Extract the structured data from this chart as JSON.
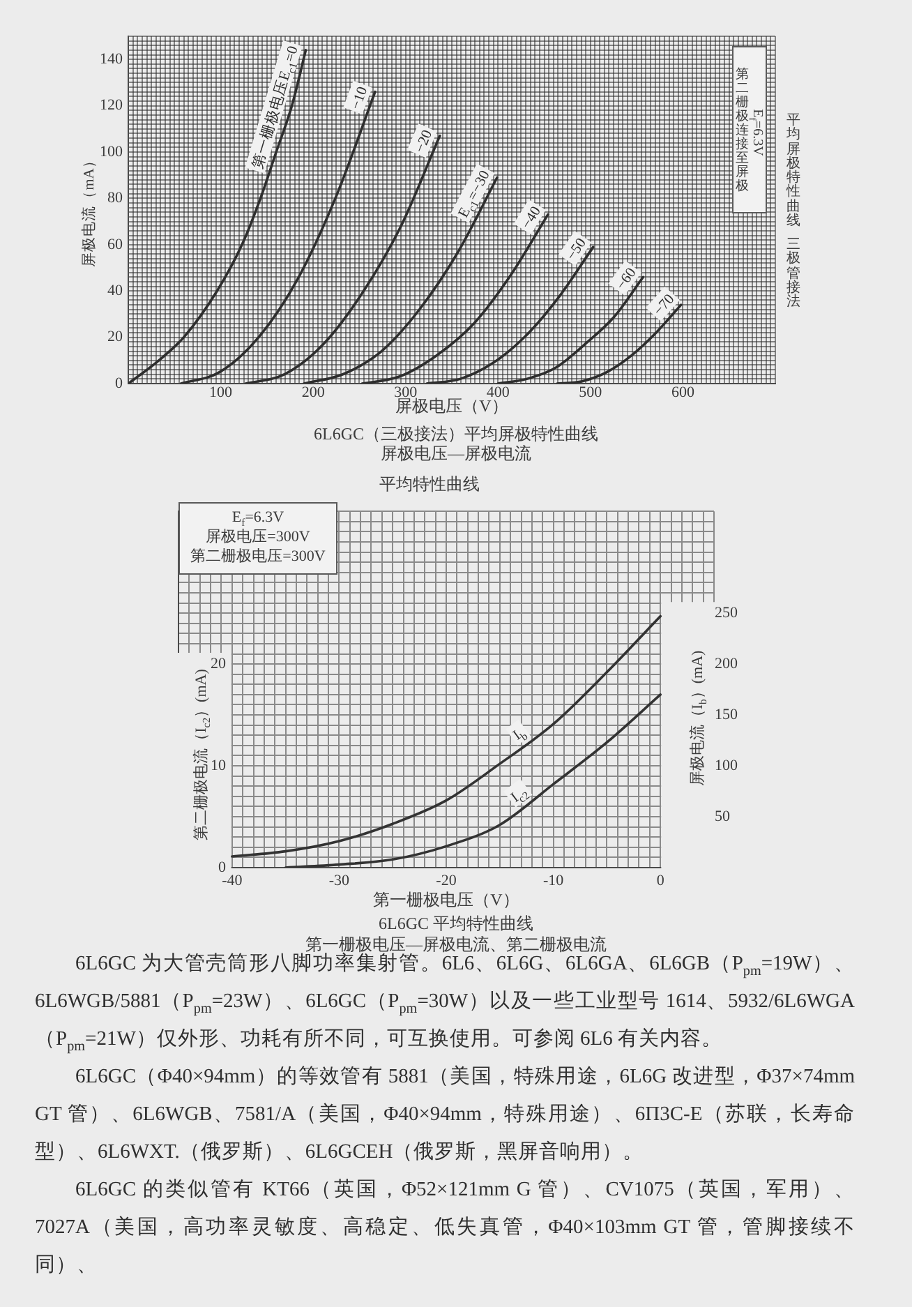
{
  "chart_data": [
    {
      "type": "line",
      "xlabel": "屏极电压（V）",
      "ylabel": "屏极电流（mA）",
      "annotations": [
        "E$_{f}$=6.3V",
        "第二栅极连接至屏极",
        "6L6GC（三极接法）平均屏极特性曲线",
        "屏极电压—屏极电流",
        "平均屏极特性曲线",
        "三极管接法"
      ],
      "series": [
        {
          "name": "第一栅极电压E$_{c1}$=0",
          "color": "#2e2e2e",
          "x": [
            0,
            33,
            60,
            96,
            123,
            143,
            160,
            177,
            192
          ],
          "values": [
            0,
            10,
            20,
            40,
            60,
            80,
            100,
            120,
            144
          ]
        },
        {
          "name": "−10",
          "color": "#2e2e2e",
          "x": [
            57,
            99,
            141,
            183,
            225,
            267
          ],
          "values": [
            0,
            5,
            20,
            45,
            81,
            126
          ]
        },
        {
          "name": "−20",
          "color": "#2e2e2e",
          "x": [
            127,
            169,
            211,
            253,
            295,
            337
          ],
          "values": [
            0,
            4,
            17,
            39,
            68,
            107
          ]
        },
        {
          "name": "E$_{c1}$=−30",
          "color": "#2e2e2e",
          "x": [
            190,
            232,
            274,
            315,
            357,
            399
          ],
          "values": [
            0,
            4,
            14,
            32,
            57,
            89
          ]
        },
        {
          "name": "−40",
          "color": "#2e2e2e",
          "x": [
            253,
            293,
            333,
            374,
            414,
            454
          ],
          "values": [
            0,
            3,
            12,
            26,
            47,
            73
          ]
        },
        {
          "name": "−50",
          "color": "#2e2e2e",
          "x": [
            323,
            359,
            395,
            431,
            467,
            503
          ],
          "values": [
            0,
            2,
            9,
            21,
            38,
            59
          ]
        },
        {
          "name": "−60",
          "color": "#2e2e2e",
          "x": [
            400,
            431,
            463,
            494,
            526,
            557
          ],
          "values": [
            0,
            2,
            7,
            17,
            29,
            46
          ]
        },
        {
          "name": "−70",
          "color": "#2e2e2e",
          "x": [
            464,
            491,
            518,
            544,
            571,
            598
          ],
          "values": [
            0,
            1,
            5,
            12,
            22,
            34
          ]
        }
      ],
      "xlim": [
        0,
        700
      ],
      "ylim": [
        0,
        150
      ],
      "xticks": [
        {
          "value": 0,
          "label": null
        },
        {
          "value": 5,
          "label": null
        },
        {
          "value": 10,
          "label": null
        },
        {
          "value": 15,
          "label": null
        },
        {
          "value": 20,
          "label": null
        },
        {
          "value": 25,
          "label": null
        },
        {
          "value": 30,
          "label": null
        },
        {
          "value": 35,
          "label": null
        },
        {
          "value": 40,
          "label": null
        },
        {
          "value": 45,
          "label": null
        },
        {
          "value": 50,
          "label": null
        },
        {
          "value": 55,
          "label": null
        },
        {
          "value": 60,
          "label": null
        },
        {
          "value": 65,
          "label": null
        },
        {
          "value": 70,
          "label": null
        },
        {
          "value": 75,
          "label": null
        },
        {
          "value": 80,
          "label": null
        },
        {
          "value": 85,
          "label": null
        },
        {
          "value": 90,
          "label": null
        },
        {
          "value": 95,
          "label": null
        },
        100,
        {
          "value": 105,
          "label": null
        },
        {
          "value": 110,
          "label": null
        },
        {
          "value": 115,
          "label": null
        },
        {
          "value": 120,
          "label": null
        },
        {
          "value": 125,
          "label": null
        },
        {
          "value": 130,
          "label": null
        },
        {
          "value": 135,
          "label": null
        },
        {
          "value": 140,
          "label": null
        },
        {
          "value": 145,
          "label": null
        },
        {
          "value": 150,
          "label": null
        },
        {
          "value": 155,
          "label": null
        },
        {
          "value": 160,
          "label": null
        },
        {
          "value": 165,
          "label": null
        },
        {
          "value": 170,
          "label": null
        },
        {
          "value": 175,
          "label": null
        },
        {
          "value": 180,
          "label": null
        },
        {
          "value": 185,
          "label": null
        },
        {
          "value": 190,
          "label": null
        },
        {
          "value": 195,
          "label": null
        },
        200,
        {
          "value": 205,
          "label": null
        },
        {
          "value": 210,
          "label": null
        },
        {
          "value": 215,
          "label": null
        },
        {
          "value": 220,
          "label": null
        },
        {
          "value": 225,
          "label": null
        },
        {
          "value": 230,
          "label": null
        },
        {
          "value": 235,
          "label": null
        },
        {
          "value": 240,
          "label": null
        },
        {
          "value": 245,
          "label": null
        },
        {
          "value": 250,
          "label": null
        },
        {
          "value": 255,
          "label": null
        },
        {
          "value": 260,
          "label": null
        },
        {
          "value": 265,
          "label": null
        },
        {
          "value": 270,
          "label": null
        },
        {
          "value": 275,
          "label": null
        },
        {
          "value": 280,
          "label": null
        },
        {
          "value": 285,
          "label": null
        },
        {
          "value": 290,
          "label": null
        },
        {
          "value": 295,
          "label": null
        },
        300,
        {
          "value": 305,
          "label": null
        },
        {
          "value": 310,
          "label": null
        },
        {
          "value": 315,
          "label": null
        },
        {
          "value": 320,
          "label": null
        },
        {
          "value": 325,
          "label": null
        },
        {
          "value": 330,
          "label": null
        },
        {
          "value": 335,
          "label": null
        },
        {
          "value": 340,
          "label": null
        },
        {
          "value": 345,
          "label": null
        },
        {
          "value": 350,
          "label": null
        },
        {
          "value": 355,
          "label": null
        },
        {
          "value": 360,
          "label": null
        },
        {
          "value": 365,
          "label": null
        },
        {
          "value": 370,
          "label": null
        },
        {
          "value": 375,
          "label": null
        },
        {
          "value": 380,
          "label": null
        },
        {
          "value": 385,
          "label": null
        },
        {
          "value": 390,
          "label": null
        },
        {
          "value": 395,
          "label": null
        },
        400,
        {
          "value": 405,
          "label": null
        },
        {
          "value": 410,
          "label": null
        },
        {
          "value": 415,
          "label": null
        },
        {
          "value": 420,
          "label": null
        },
        {
          "value": 425,
          "label": null
        },
        {
          "value": 430,
          "label": null
        },
        {
          "value": 435,
          "label": null
        },
        {
          "value": 440,
          "label": null
        },
        {
          "value": 445,
          "label": null
        },
        {
          "value": 450,
          "label": null
        },
        {
          "value": 455,
          "label": null
        },
        {
          "value": 460,
          "label": null
        },
        {
          "value": 465,
          "label": null
        },
        {
          "value": 470,
          "label": null
        },
        {
          "value": 475,
          "label": null
        },
        {
          "value": 480,
          "label": null
        },
        {
          "value": 485,
          "label": null
        },
        {
          "value": 490,
          "label": null
        },
        {
          "value": 495,
          "label": null
        },
        500,
        {
          "value": 505,
          "label": null
        },
        {
          "value": 510,
          "label": null
        },
        {
          "value": 515,
          "label": null
        },
        {
          "value": 520,
          "label": null
        },
        {
          "value": 525,
          "label": null
        },
        {
          "value": 530,
          "label": null
        },
        {
          "value": 535,
          "label": null
        },
        {
          "value": 540,
          "label": null
        },
        {
          "value": 545,
          "label": null
        },
        {
          "value": 550,
          "label": null
        },
        {
          "value": 555,
          "label": null
        },
        {
          "value": 560,
          "label": null
        },
        {
          "value": 565,
          "label": null
        },
        {
          "value": 570,
          "label": null
        },
        {
          "value": 575,
          "label": null
        },
        {
          "value": 580,
          "label": null
        },
        {
          "value": 585,
          "label": null
        },
        {
          "value": 590,
          "label": null
        },
        {
          "value": 595,
          "label": null
        },
        600,
        {
          "value": 605,
          "label": null
        },
        {
          "value": 610,
          "label": null
        },
        {
          "value": 615,
          "label": null
        },
        {
          "value": 620,
          "label": null
        },
        {
          "value": 625,
          "label": null
        },
        {
          "value": 630,
          "label": null
        },
        {
          "value": 635,
          "label": null
        },
        {
          "value": 640,
          "label": null
        },
        {
          "value": 645,
          "label": null
        },
        {
          "value": 650,
          "label": null
        },
        {
          "value": 655,
          "label": null
        },
        {
          "value": 660,
          "label": null
        },
        {
          "value": 665,
          "label": null
        },
        {
          "value": 670,
          "label": null
        },
        {
          "value": 675,
          "label": null
        },
        {
          "value": 680,
          "label": null
        },
        {
          "value": 685,
          "label": null
        },
        {
          "value": 690,
          "label": null
        },
        {
          "value": 695,
          "label": null
        },
        {
          "value": 700,
          "label": null
        }
      ],
      "yticks": [
        0,
        {
          "value": 2,
          "label": null
        },
        {
          "value": 4,
          "label": null
        },
        {
          "value": 6,
          "label": null
        },
        {
          "value": 8,
          "label": null
        },
        {
          "value": 10,
          "label": null
        },
        {
          "value": 12,
          "label": null
        },
        {
          "value": 14,
          "label": null
        },
        {
          "value": 16,
          "label": null
        },
        {
          "value": 18,
          "label": null
        },
        20,
        {
          "value": 22,
          "label": null
        },
        {
          "value": 24,
          "label": null
        },
        {
          "value": 26,
          "label": null
        },
        {
          "value": 28,
          "label": null
        },
        {
          "value": 30,
          "label": null
        },
        {
          "value": 32,
          "label": null
        },
        {
          "value": 34,
          "label": null
        },
        {
          "value": 36,
          "label": null
        },
        {
          "value": 38,
          "label": null
        },
        40,
        {
          "value": 42,
          "label": null
        },
        {
          "value": 44,
          "label": null
        },
        {
          "value": 46,
          "label": null
        },
        {
          "value": 48,
          "label": null
        },
        {
          "value": 50,
          "label": null
        },
        {
          "value": 52,
          "label": null
        },
        {
          "value": 54,
          "label": null
        },
        {
          "value": 56,
          "label": null
        },
        {
          "value": 58,
          "label": null
        },
        60,
        {
          "value": 62,
          "label": null
        },
        {
          "value": 64,
          "label": null
        },
        {
          "value": 66,
          "label": null
        },
        {
          "value": 68,
          "label": null
        },
        {
          "value": 70,
          "label": null
        },
        {
          "value": 72,
          "label": null
        },
        {
          "value": 74,
          "label": null
        },
        {
          "value": 76,
          "label": null
        },
        {
          "value": 78,
          "label": null
        },
        80,
        {
          "value": 82,
          "label": null
        },
        {
          "value": 84,
          "label": null
        },
        {
          "value": 86,
          "label": null
        },
        {
          "value": 88,
          "label": null
        },
        {
          "value": 90,
          "label": null
        },
        {
          "value": 92,
          "label": null
        },
        {
          "value": 94,
          "label": null
        },
        {
          "value": 96,
          "label": null
        },
        {
          "value": 98,
          "label": null
        },
        100,
        {
          "value": 102,
          "label": null
        },
        {
          "value": 104,
          "label": null
        },
        {
          "value": 106,
          "label": null
        },
        {
          "value": 108,
          "label": null
        },
        {
          "value": 110,
          "label": null
        },
        {
          "value": 112,
          "label": null
        },
        {
          "value": 114,
          "label": null
        },
        {
          "value": 116,
          "label": null
        },
        {
          "value": 118,
          "label": null
        },
        120,
        {
          "value": 122,
          "label": null
        },
        {
          "value": 124,
          "label": null
        },
        {
          "value": 126,
          "label": null
        },
        {
          "value": 128,
          "label": null
        },
        {
          "value": 130,
          "label": null
        },
        {
          "value": 132,
          "label": null
        },
        {
          "value": 134,
          "label": null
        },
        {
          "value": 136,
          "label": null
        },
        {
          "value": 138,
          "label": null
        },
        140,
        {
          "value": 142,
          "label": null
        },
        {
          "value": 144,
          "label": null
        },
        {
          "value": 146,
          "label": null
        },
        {
          "value": 148,
          "label": null
        },
        {
          "value": 150,
          "label": null
        }
      ],
      "grid": true,
      "marker": "none",
      "line_style": "solid"
    },
    {
      "type": "line",
      "title": "平均特性曲线",
      "xlabel": "第一栅极电压（V）",
      "ylabel": "第二栅极电流（I$_{c2}$）(mA)",
      "y2label": "屏极电流（I$_{b}$）(mA)",
      "annotations": [
        "E$_{f}$=6.3V",
        "屏极电压=300V",
        "第二栅极电压=300V",
        "6L6GC 平均特性曲线",
        "第一栅极电压—屏极电流、第二栅极电流",
        "6L6GC 为大管壳筒形八脚功率集射管。6L6、6L6G、6L6GA、6L6GB（P$_{pm}$=19W）、6L6WGB/5881（P$_{pm}$=23W）、6L6GC（P$_{pm}$=30W）以及一些工业型号 1614、5932/6L6WGA（P$_{pm}$=21W）仅外形、功耗有所不同，可互换使用。可参阅 6L6 有关内容。",
        "6L6GC（Φ40×94mm）的等效管有 5881（美国，特殊用途，6L6G 改进型，Φ37×74mm GT 管）、6L6WGB、7581/A（美国，Φ40×94mm，特殊用途）、6П3C-E（苏联，长寿命型）、6L6WXT.（俄罗斯）、6L6GCEH（俄罗斯，黑屏音响用）。",
        "6L6GC 的类似管有 KT66（英国，Φ52×121mm G 管）、CV1075（英国，军用）、7027A（美国，高功率灵敏度、高稳定、低失真管，Φ40×103mm GT 管，管脚接续不同）、"
      ],
      "series": [
        {
          "name": "I$_{b}$",
          "color": "#333333",
          "axis": "y2",
          "x": [
            -40,
            -35,
            -30,
            -25,
            -20,
            -15,
            -10,
            -5,
            0
          ],
          "values": [
            11,
            16,
            26,
            43,
            66,
            102,
            141,
            192,
            247
          ]
        },
        {
          "name": "I$_{c2}$",
          "color": "#333333",
          "x": [
            -35,
            -30,
            -25,
            -20,
            -15,
            -10,
            -5,
            0
          ],
          "values": [
            0,
            0.3,
            0.8,
            2.1,
            4.2,
            8.2,
            12.3,
            17
          ]
        }
      ],
      "xlim": [
        -45,
        5
      ],
      "ylim": [
        0,
        35
      ],
      "y2lim": [
        0,
        350
      ],
      "xticks": [
        {
          "value": -45,
          "label": null
        },
        {
          "value": -44,
          "label": null
        },
        {
          "value": -43,
          "label": null
        },
        {
          "value": -42,
          "label": null
        },
        {
          "value": -41,
          "label": null
        },
        -40,
        {
          "value": -39,
          "label": null
        },
        {
          "value": -38,
          "label": null
        },
        {
          "value": -37,
          "label": null
        },
        {
          "value": -36,
          "label": null
        },
        {
          "value": -35,
          "label": null
        },
        {
          "value": -34,
          "label": null
        },
        {
          "value": -33,
          "label": null
        },
        {
          "value": -32,
          "label": null
        },
        {
          "value": -31,
          "label": null
        },
        -30,
        {
          "value": -29,
          "label": null
        },
        {
          "value": -28,
          "label": null
        },
        {
          "value": -27,
          "label": null
        },
        {
          "value": -26,
          "label": null
        },
        {
          "value": -25,
          "label": null
        },
        {
          "value": -24,
          "label": null
        },
        {
          "value": -23,
          "label": null
        },
        {
          "value": -22,
          "label": null
        },
        {
          "value": -21,
          "label": null
        },
        -20,
        {
          "value": -19,
          "label": null
        },
        {
          "value": -18,
          "label": null
        },
        {
          "value": -17,
          "label": null
        },
        {
          "value": -16,
          "label": null
        },
        {
          "value": -15,
          "label": null
        },
        {
          "value": -14,
          "label": null
        },
        {
          "value": -13,
          "label": null
        },
        {
          "value": -12,
          "label": null
        },
        {
          "value": -11,
          "label": null
        },
        -10,
        {
          "value": -9,
          "label": null
        },
        {
          "value": -8,
          "label": null
        },
        {
          "value": -7,
          "label": null
        },
        {
          "value": -6,
          "label": null
        },
        {
          "value": -5,
          "label": null
        },
        {
          "value": -4,
          "label": null
        },
        {
          "value": -3,
          "label": null
        },
        {
          "value": -2,
          "label": null
        },
        {
          "value": -1,
          "label": null
        },
        0,
        {
          "value": 1,
          "label": null
        },
        {
          "value": 2,
          "label": null
        },
        {
          "value": 3,
          "label": null
        },
        {
          "value": 4,
          "label": null
        },
        {
          "value": 5,
          "label": null
        }
      ],
      "yticks": [
        0,
        {
          "value": 1,
          "label": null
        },
        {
          "value": 2,
          "label": null
        },
        {
          "value": 3,
          "label": null
        },
        {
          "value": 4,
          "label": null
        },
        {
          "value": 5,
          "label": null
        },
        {
          "value": 6,
          "label": null
        },
        {
          "value": 7,
          "label": null
        },
        {
          "value": 8,
          "label": null
        },
        {
          "value": 9,
          "label": null
        },
        10,
        {
          "value": 11,
          "label": null
        },
        {
          "value": 12,
          "label": null
        },
        {
          "value": 13,
          "label": null
        },
        {
          "value": 14,
          "label": null
        },
        {
          "value": 15,
          "label": null
        },
        {
          "value": 16,
          "label": null
        },
        {
          "value": 17,
          "label": null
        },
        {
          "value": 18,
          "label": null
        },
        {
          "value": 19,
          "label": null
        },
        20,
        {
          "value": 21,
          "label": null
        },
        {
          "value": 22,
          "label": null
        },
        {
          "value": 23,
          "label": null
        },
        {
          "value": 24,
          "label": null
        },
        {
          "value": 25,
          "label": null
        },
        {
          "value": 26,
          "label": null
        },
        {
          "value": 27,
          "label": null
        },
        {
          "value": 28,
          "label": null
        },
        {
          "value": 29,
          "label": null
        },
        {
          "value": 30,
          "label": null
        },
        {
          "value": 31,
          "label": null
        },
        {
          "value": 32,
          "label": null
        },
        {
          "value": 33,
          "label": null
        },
        {
          "value": 34,
          "label": null
        },
        {
          "value": 35,
          "label": null
        }
      ],
      "y2ticks": [
        50,
        100,
        150,
        200,
        250
      ],
      "grid": true,
      "marker": "none",
      "line_style": "solid"
    }
  ]
}
